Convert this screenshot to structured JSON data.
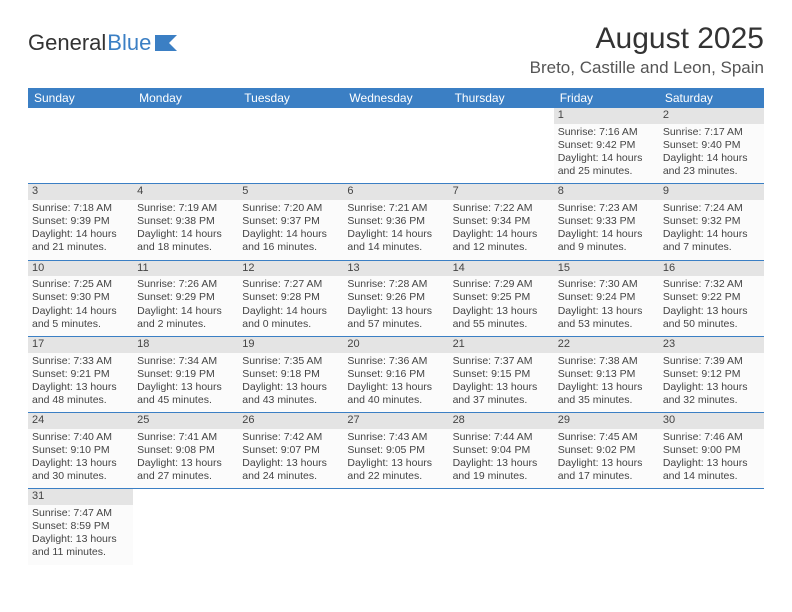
{
  "logo": {
    "text1": "General",
    "text2": "Blue"
  },
  "title": "August 2025",
  "location": "Breto, Castille and Leon, Spain",
  "weekdays": [
    "Sunday",
    "Monday",
    "Tuesday",
    "Wednesday",
    "Thursday",
    "Friday",
    "Saturday"
  ],
  "colors": {
    "header_bg": "#3b7fc4",
    "header_text": "#ffffff",
    "daynum_bg": "#e4e4e4",
    "border": "#3b7fc4"
  },
  "weeks": [
    [
      null,
      null,
      null,
      null,
      null,
      {
        "d": "1",
        "sr": "7:16 AM",
        "ss": "9:42 PM",
        "dl": "14 hours and 25 minutes."
      },
      {
        "d": "2",
        "sr": "7:17 AM",
        "ss": "9:40 PM",
        "dl": "14 hours and 23 minutes."
      }
    ],
    [
      {
        "d": "3",
        "sr": "7:18 AM",
        "ss": "9:39 PM",
        "dl": "14 hours and 21 minutes."
      },
      {
        "d": "4",
        "sr": "7:19 AM",
        "ss": "9:38 PM",
        "dl": "14 hours and 18 minutes."
      },
      {
        "d": "5",
        "sr": "7:20 AM",
        "ss": "9:37 PM",
        "dl": "14 hours and 16 minutes."
      },
      {
        "d": "6",
        "sr": "7:21 AM",
        "ss": "9:36 PM",
        "dl": "14 hours and 14 minutes."
      },
      {
        "d": "7",
        "sr": "7:22 AM",
        "ss": "9:34 PM",
        "dl": "14 hours and 12 minutes."
      },
      {
        "d": "8",
        "sr": "7:23 AM",
        "ss": "9:33 PM",
        "dl": "14 hours and 9 minutes."
      },
      {
        "d": "9",
        "sr": "7:24 AM",
        "ss": "9:32 PM",
        "dl": "14 hours and 7 minutes."
      }
    ],
    [
      {
        "d": "10",
        "sr": "7:25 AM",
        "ss": "9:30 PM",
        "dl": "14 hours and 5 minutes."
      },
      {
        "d": "11",
        "sr": "7:26 AM",
        "ss": "9:29 PM",
        "dl": "14 hours and 2 minutes."
      },
      {
        "d": "12",
        "sr": "7:27 AM",
        "ss": "9:28 PM",
        "dl": "14 hours and 0 minutes."
      },
      {
        "d": "13",
        "sr": "7:28 AM",
        "ss": "9:26 PM",
        "dl": "13 hours and 57 minutes."
      },
      {
        "d": "14",
        "sr": "7:29 AM",
        "ss": "9:25 PM",
        "dl": "13 hours and 55 minutes."
      },
      {
        "d": "15",
        "sr": "7:30 AM",
        "ss": "9:24 PM",
        "dl": "13 hours and 53 minutes."
      },
      {
        "d": "16",
        "sr": "7:32 AM",
        "ss": "9:22 PM",
        "dl": "13 hours and 50 minutes."
      }
    ],
    [
      {
        "d": "17",
        "sr": "7:33 AM",
        "ss": "9:21 PM",
        "dl": "13 hours and 48 minutes."
      },
      {
        "d": "18",
        "sr": "7:34 AM",
        "ss": "9:19 PM",
        "dl": "13 hours and 45 minutes."
      },
      {
        "d": "19",
        "sr": "7:35 AM",
        "ss": "9:18 PM",
        "dl": "13 hours and 43 minutes."
      },
      {
        "d": "20",
        "sr": "7:36 AM",
        "ss": "9:16 PM",
        "dl": "13 hours and 40 minutes."
      },
      {
        "d": "21",
        "sr": "7:37 AM",
        "ss": "9:15 PM",
        "dl": "13 hours and 37 minutes."
      },
      {
        "d": "22",
        "sr": "7:38 AM",
        "ss": "9:13 PM",
        "dl": "13 hours and 35 minutes."
      },
      {
        "d": "23",
        "sr": "7:39 AM",
        "ss": "9:12 PM",
        "dl": "13 hours and 32 minutes."
      }
    ],
    [
      {
        "d": "24",
        "sr": "7:40 AM",
        "ss": "9:10 PM",
        "dl": "13 hours and 30 minutes."
      },
      {
        "d": "25",
        "sr": "7:41 AM",
        "ss": "9:08 PM",
        "dl": "13 hours and 27 minutes."
      },
      {
        "d": "26",
        "sr": "7:42 AM",
        "ss": "9:07 PM",
        "dl": "13 hours and 24 minutes."
      },
      {
        "d": "27",
        "sr": "7:43 AM",
        "ss": "9:05 PM",
        "dl": "13 hours and 22 minutes."
      },
      {
        "d": "28",
        "sr": "7:44 AM",
        "ss": "9:04 PM",
        "dl": "13 hours and 19 minutes."
      },
      {
        "d": "29",
        "sr": "7:45 AM",
        "ss": "9:02 PM",
        "dl": "13 hours and 17 minutes."
      },
      {
        "d": "30",
        "sr": "7:46 AM",
        "ss": "9:00 PM",
        "dl": "13 hours and 14 minutes."
      }
    ],
    [
      {
        "d": "31",
        "sr": "7:47 AM",
        "ss": "8:59 PM",
        "dl": "13 hours and 11 minutes."
      },
      null,
      null,
      null,
      null,
      null,
      null
    ]
  ],
  "labels": {
    "sunrise": "Sunrise: ",
    "sunset": "Sunset: ",
    "daylight": "Daylight: "
  }
}
